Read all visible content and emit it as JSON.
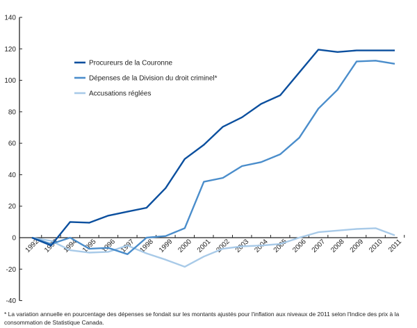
{
  "chart_data": {
    "type": "line",
    "x": [
      1992,
      1993,
      1994,
      1995,
      1996,
      1997,
      1998,
      1999,
      2000,
      2001,
      2002,
      2003,
      2004,
      2005,
      2006,
      2007,
      2008,
      2009,
      2010,
      2011
    ],
    "ylim": [
      -40,
      140
    ],
    "yticks": [
      -40,
      -20,
      0,
      20,
      40,
      60,
      80,
      100,
      120,
      140
    ],
    "grid": false,
    "legend_placement": "top-left",
    "series": [
      {
        "name": "Procureurs de la Couronne",
        "color": "#0b4f9e",
        "values": [
          0,
          -5,
          10,
          9.5,
          14,
          16.5,
          19,
          31.5,
          50,
          59,
          70.5,
          76.5,
          85,
          90.5,
          105,
          119.5,
          118,
          119,
          119,
          119
        ]
      },
      {
        "name": "Dépenses de la Division du droit criminel*",
        "color": "#4a8dcb",
        "values": [
          0,
          -4,
          0,
          -7,
          -6.5,
          -10.5,
          0,
          1,
          6,
          35.5,
          38,
          45.5,
          48,
          53,
          63.5,
          82,
          94,
          112,
          112.5,
          110.5
        ]
      },
      {
        "name": "Accusations réglées",
        "color": "#a8cae8",
        "values": [
          0,
          -2,
          -8,
          -9.5,
          -9,
          -5,
          -10,
          -14,
          -18.5,
          -12,
          -7,
          -5.5,
          -5,
          -4,
          0,
          3.5,
          4.5,
          5.5,
          6,
          1.5
        ]
      }
    ]
  },
  "footnote": "* La variation annuelle en pourcentage des dépenses se fondait sur les montants ajustés pour l'inflation aux niveaux de 2011 selon l'Indice des prix à la consommation de Statistique Canada."
}
